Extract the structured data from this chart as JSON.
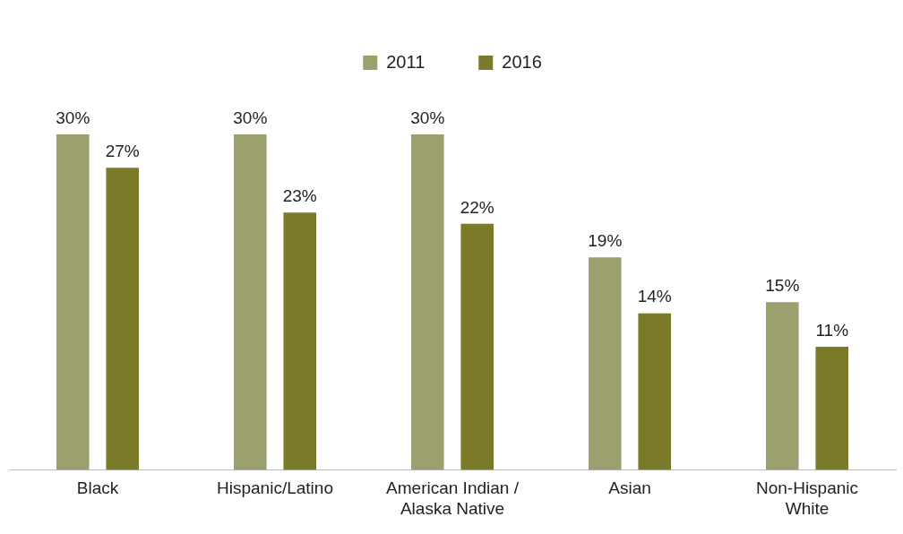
{
  "chart_data": {
    "type": "bar",
    "categories": [
      "Black",
      "Hispanic/Latino",
      "American Indian / Alaska Native",
      "Asian",
      "Non-Hispanic White"
    ],
    "series": [
      {
        "name": "2011",
        "color": "#9c9f6e",
        "values": [
          30,
          30,
          30,
          19,
          15
        ],
        "value_labels": [
          "30%",
          "30%",
          "30%",
          "19%",
          "15%"
        ]
      },
      {
        "name": "2016",
        "color": "#7a7a28",
        "values": [
          27,
          23,
          22,
          14,
          11
        ],
        "value_labels": [
          "27%",
          "23%",
          "22%",
          "14%",
          "11%"
        ]
      }
    ],
    "legend": "top",
    "grid": false
  }
}
